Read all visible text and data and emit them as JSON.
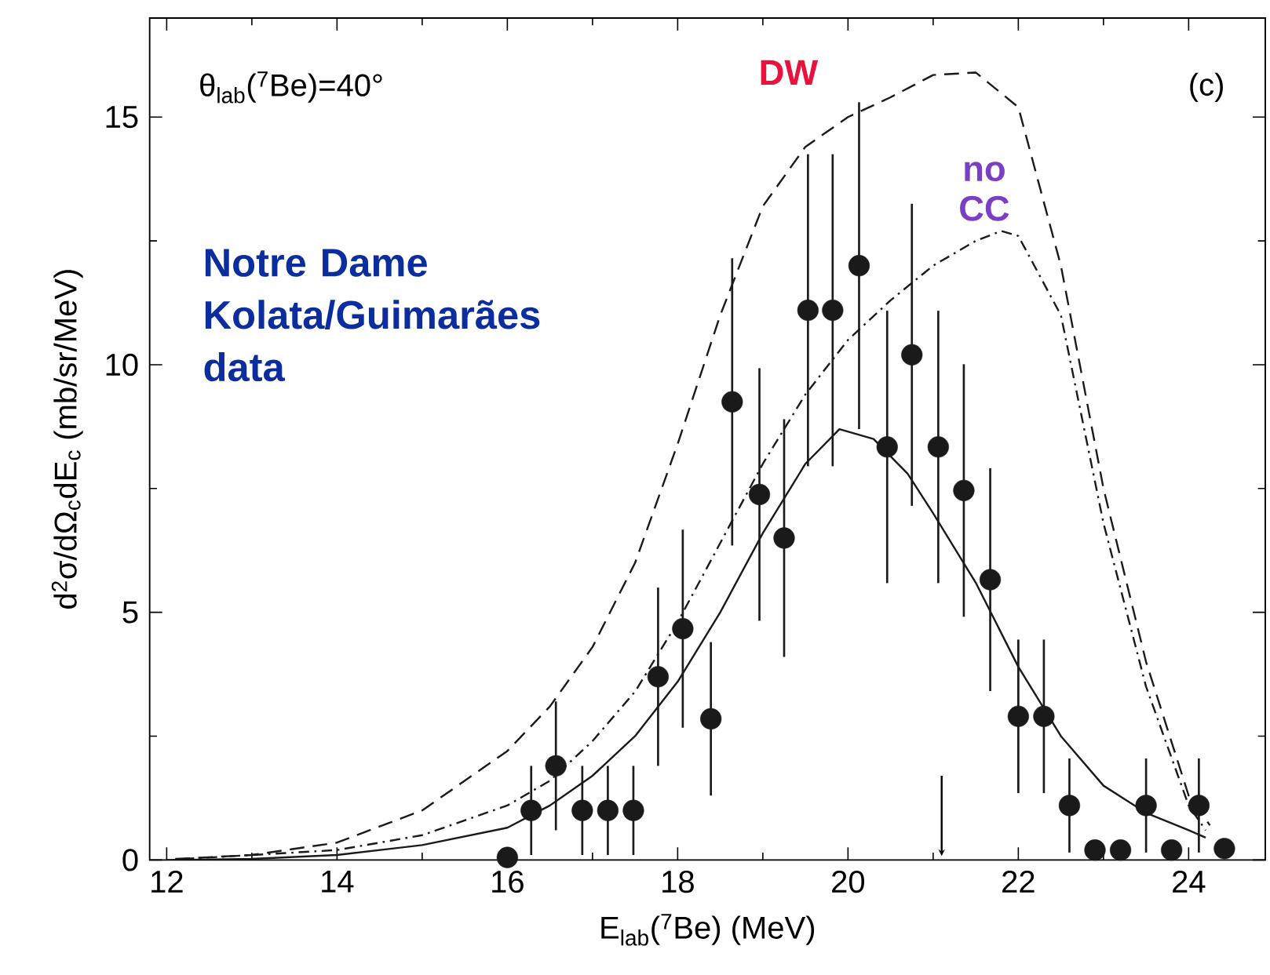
{
  "chart_data": {
    "type": "scatter",
    "xlabel": "E$_{lab}$($^{7}$Be)  (MeV)",
    "ylabel": "d$^{2}$σ/dΩ$_{c}$dE$_{c}$  (mb/sr/MeV)",
    "annotations": [
      "θ$_{lab}$($^{7}$Be)=40°",
      "(c)",
      "Notre Dame Kolata/Guimarães data"
    ],
    "xlim": [
      11.8,
      24.9
    ],
    "ylim": [
      0,
      17
    ],
    "xticks": [
      12,
      14,
      16,
      18,
      20,
      22,
      24
    ],
    "yticks": [
      0,
      5,
      10,
      15
    ],
    "series": [
      {
        "color": "#1a1a1a",
        "marker": "circle",
        "x": [
          16.0,
          16.28,
          16.57,
          16.88,
          17.18,
          17.48,
          17.77,
          18.06,
          18.39,
          18.64,
          18.96,
          19.25,
          19.53,
          19.82,
          20.13,
          20.46,
          20.75,
          21.06,
          21.36,
          21.67,
          22.0,
          22.3,
          22.6,
          22.9,
          23.2,
          23.5,
          23.8,
          24.12,
          24.42
        ],
        "values": [
          0.05,
          1.0,
          1.9,
          1.0,
          1.0,
          1.0,
          3.7,
          4.67,
          2.85,
          9.25,
          7.38,
          6.5,
          11.1,
          11.1,
          12.0,
          8.34,
          10.2,
          8.34,
          7.46,
          5.66,
          2.9,
          2.9,
          1.1,
          0.2,
          0.2,
          1.1,
          0.2,
          1.1,
          0.23
        ],
        "errors": [
          null,
          0.9,
          1.3,
          0.9,
          0.9,
          0.9,
          1.8,
          2.0,
          1.55,
          2.9,
          2.55,
          2.4,
          3.15,
          3.15,
          3.3,
          2.75,
          3.05,
          2.75,
          2.55,
          2.25,
          1.55,
          1.55,
          0.95,
          null,
          null,
          0.95,
          null,
          0.95,
          null
        ]
      },
      {
        "type": "line",
        "color": "#1a1a1a",
        "line_style": "solid",
        "x": [
          12,
          13,
          14,
          15,
          16,
          16.5,
          17,
          17.5,
          18,
          18.5,
          19,
          19.5,
          19.9,
          20.3,
          20.7,
          21,
          21.5,
          22,
          22.5,
          23,
          23.5,
          24,
          24.2
        ],
        "values": [
          0,
          0.02,
          0.1,
          0.3,
          0.65,
          1.1,
          1.7,
          2.5,
          3.6,
          5.0,
          6.6,
          8.0,
          8.7,
          8.5,
          7.8,
          7.0,
          5.6,
          3.9,
          2.5,
          1.5,
          0.95,
          0.6,
          0.45
        ]
      },
      {
        "type": "line",
        "name": "DW",
        "color": "#1a1a1a",
        "line_style": "dashed",
        "x": [
          12.1,
          13,
          14,
          15,
          16,
          16.5,
          17,
          17.5,
          18,
          18.5,
          19,
          19.5,
          20,
          20.5,
          21,
          21.5,
          22,
          22.5,
          23,
          23.5,
          24,
          24.25
        ],
        "values": [
          0.02,
          0.1,
          0.35,
          1.0,
          2.2,
          3.1,
          4.3,
          6.0,
          8.4,
          11.0,
          13.2,
          14.4,
          15.0,
          15.4,
          15.85,
          15.9,
          15.2,
          12.0,
          7.5,
          4.0,
          1.3,
          0.7
        ]
      },
      {
        "type": "line",
        "name": "no CC",
        "color": "#1a1a1a",
        "line_style": "dashdot",
        "x": [
          12.2,
          14,
          15,
          16,
          16.5,
          17,
          17.5,
          18,
          18.5,
          19,
          19.5,
          20,
          20.5,
          21,
          21.5,
          21.8,
          22,
          22.5,
          23,
          23.5,
          24,
          24.2
        ],
        "values": [
          0.02,
          0.2,
          0.5,
          1.1,
          1.6,
          2.4,
          3.4,
          4.8,
          6.4,
          8.0,
          9.4,
          10.5,
          11.3,
          12.0,
          12.5,
          12.7,
          12.6,
          11.0,
          6.8,
          3.5,
          1.1,
          0.6
        ]
      }
    ]
  }
}
